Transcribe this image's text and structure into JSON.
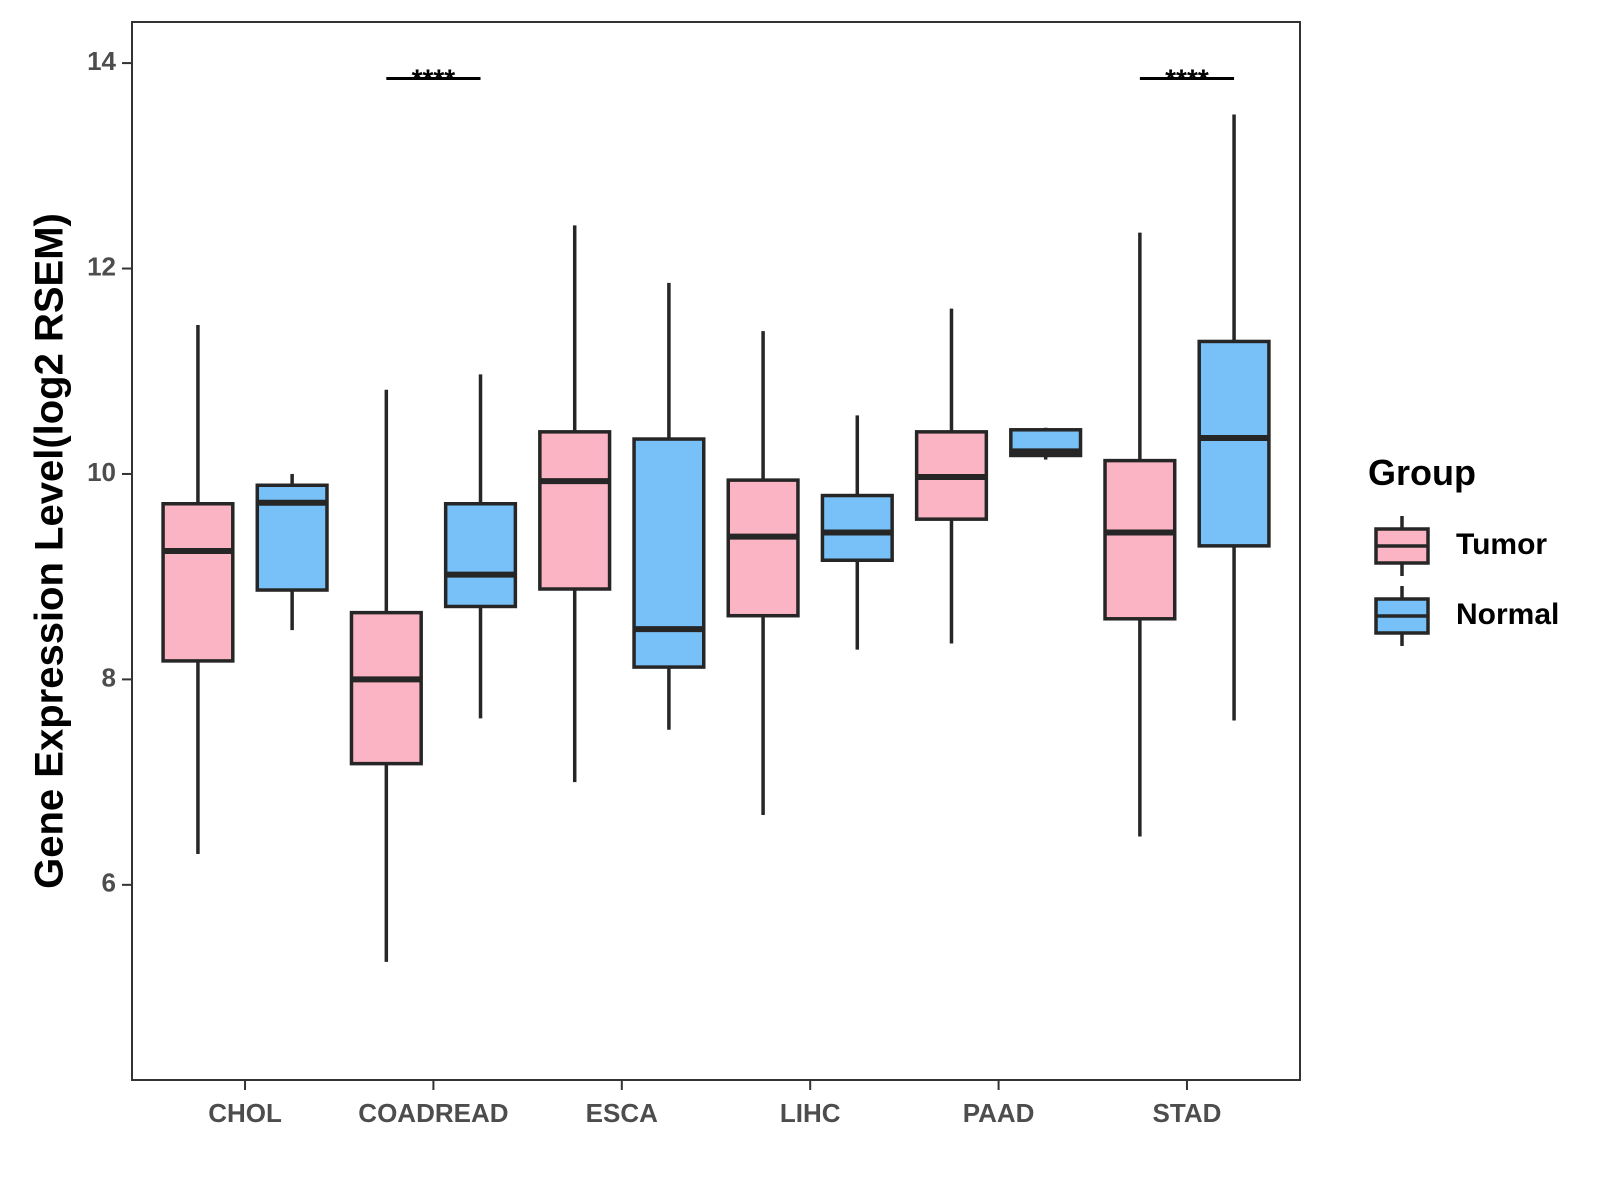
{
  "chart_data": {
    "type": "boxplot",
    "title": "",
    "xlabel": "",
    "ylabel": "Gene Expression Level(log2 RSEM)",
    "ylim": [
      4.1,
      14.4
    ],
    "yticks": [
      6,
      8,
      10,
      12,
      14
    ],
    "categories": [
      "CHOL",
      "COADREAD",
      "ESCA",
      "LIHC",
      "PAAD",
      "STAD"
    ],
    "legend": {
      "title": "Group",
      "position": "right"
    },
    "series": [
      {
        "name": "Tumor",
        "color": "#FBB4C4",
        "boxes": [
          {
            "min": 6.3,
            "q1": 8.18,
            "median": 9.25,
            "q3": 9.71,
            "max": 11.45
          },
          {
            "min": 5.25,
            "q1": 7.18,
            "median": 8.0,
            "q3": 8.65,
            "max": 10.82
          },
          {
            "min": 7.0,
            "q1": 8.88,
            "median": 9.93,
            "q3": 10.41,
            "max": 12.42
          },
          {
            "min": 6.68,
            "q1": 8.62,
            "median": 9.39,
            "q3": 9.94,
            "max": 11.39
          },
          {
            "min": 8.35,
            "q1": 9.56,
            "median": 9.97,
            "q3": 10.41,
            "max": 11.61
          },
          {
            "min": 6.47,
            "q1": 8.59,
            "median": 9.43,
            "q3": 10.13,
            "max": 12.35
          }
        ]
      },
      {
        "name": "Normal",
        "color": "#77C1F8",
        "boxes": [
          {
            "min": 8.48,
            "q1": 8.87,
            "median": 9.72,
            "q3": 9.89,
            "max": 10.0
          },
          {
            "min": 7.62,
            "q1": 8.71,
            "median": 9.02,
            "q3": 9.71,
            "max": 10.97
          },
          {
            "min": 7.51,
            "q1": 8.12,
            "median": 8.49,
            "q3": 10.34,
            "max": 11.86
          },
          {
            "min": 8.29,
            "q1": 9.16,
            "median": 9.43,
            "q3": 9.79,
            "max": 10.57
          },
          {
            "min": 10.14,
            "q1": 10.18,
            "median": 10.22,
            "q3": 10.43,
            "max": 10.45
          },
          {
            "min": 7.6,
            "q1": 9.3,
            "median": 10.35,
            "q3": 11.29,
            "max": 13.5
          }
        ]
      }
    ],
    "annotations": [
      {
        "category": "COADREAD",
        "label": "****",
        "y": 13.85
      },
      {
        "category": "STAD",
        "label": "****",
        "y": 13.85
      }
    ]
  }
}
